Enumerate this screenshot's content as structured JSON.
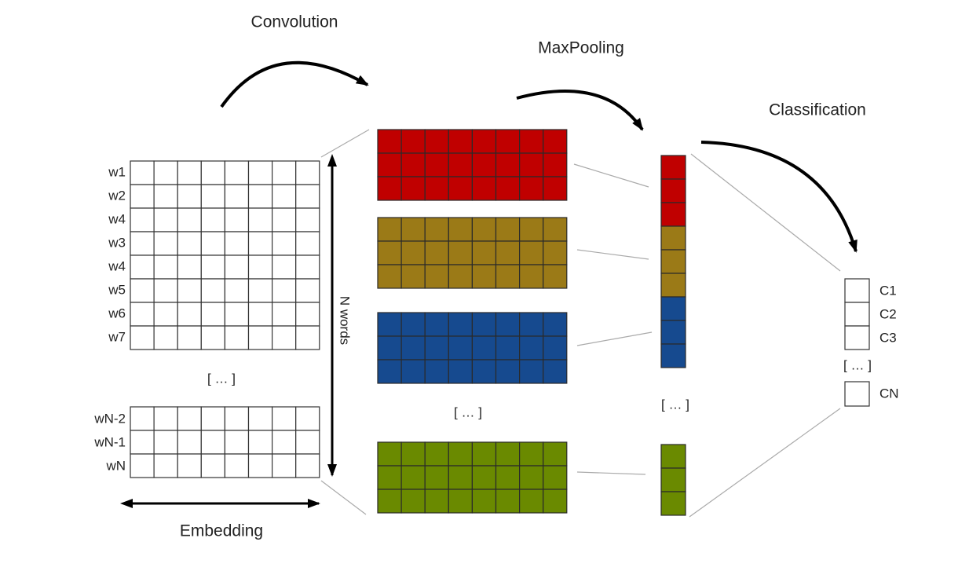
{
  "stages": {
    "convolution": "Convolution",
    "max_pooling": "MaxPooling",
    "classification": "Classification"
  },
  "embedding": {
    "word_labels": [
      "w1",
      "w2",
      "w4",
      "w3",
      "w4",
      "w5",
      "w6",
      "w7"
    ],
    "ellipsis": "[ … ]",
    "last_word_labels": [
      "wN-2",
      "wN-1",
      "wN"
    ],
    "height_label": "N words",
    "width_label": "Embedding"
  },
  "feature_maps": {
    "ellipsis": "[ … ]"
  },
  "pooled": {
    "ellipsis": "[ … ]"
  },
  "classes": {
    "labels": [
      "C1",
      "C2",
      "C3"
    ],
    "ellipsis": "[ … ]",
    "last_label": "CN"
  }
}
